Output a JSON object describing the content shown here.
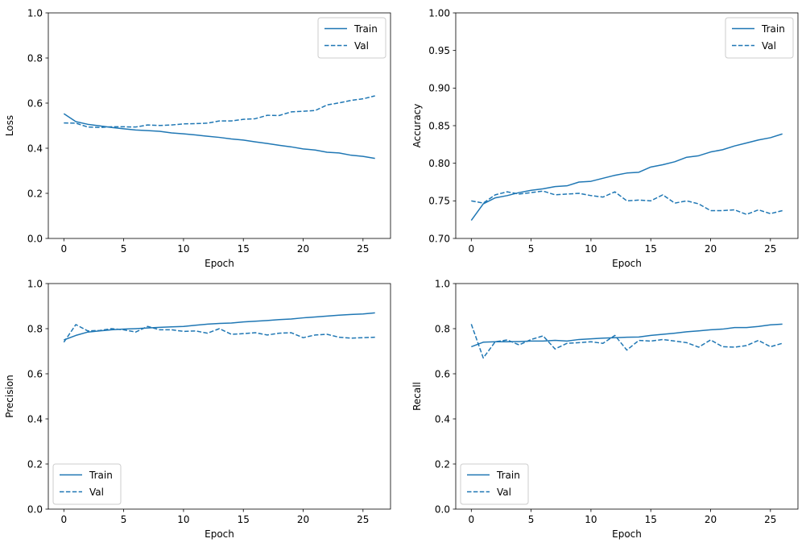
{
  "colors": {
    "series": "#1f77b4",
    "axis": "#000000",
    "legend_border": "#cccccc",
    "background": "#ffffff"
  },
  "chart_data": [
    {
      "type": "line",
      "xlabel": "Epoch",
      "ylabel": "Loss",
      "xlim": [
        -1.3,
        27.3
      ],
      "ylim": [
        0.0,
        1.0
      ],
      "xticks": [
        0,
        5,
        10,
        15,
        20,
        25
      ],
      "xtick_labels": [
        "0",
        "5",
        "10",
        "15",
        "20",
        "25"
      ],
      "yticks": [
        0.0,
        0.2,
        0.4,
        0.6,
        0.8,
        1.0
      ],
      "ytick_labels": [
        "0.0",
        "0.2",
        "0.4",
        "0.6",
        "0.8",
        "1.0"
      ],
      "legend_position": "upper right",
      "grid": false,
      "x": [
        0,
        1,
        2,
        3,
        4,
        5,
        6,
        7,
        8,
        9,
        10,
        11,
        12,
        13,
        14,
        15,
        16,
        17,
        18,
        19,
        20,
        21,
        22,
        23,
        24,
        25,
        26
      ],
      "series": [
        {
          "name": "Train",
          "style": "solid",
          "values": [
            0.553,
            0.518,
            0.506,
            0.499,
            0.492,
            0.486,
            0.481,
            0.478,
            0.475,
            0.468,
            0.464,
            0.459,
            0.453,
            0.448,
            0.441,
            0.436,
            0.428,
            0.421,
            0.413,
            0.406,
            0.397,
            0.392,
            0.382,
            0.379,
            0.369,
            0.364,
            0.355
          ]
        },
        {
          "name": "Val",
          "style": "dashed",
          "values": [
            0.512,
            0.511,
            0.494,
            0.492,
            0.495,
            0.495,
            0.494,
            0.503,
            0.501,
            0.503,
            0.508,
            0.509,
            0.511,
            0.521,
            0.521,
            0.528,
            0.531,
            0.546,
            0.545,
            0.561,
            0.564,
            0.567,
            0.592,
            0.601,
            0.612,
            0.619,
            0.632
          ]
        }
      ]
    },
    {
      "type": "line",
      "xlabel": "Epoch",
      "ylabel": "Accuracy",
      "xlim": [
        -1.3,
        27.3
      ],
      "ylim": [
        0.7,
        1.0
      ],
      "xticks": [
        0,
        5,
        10,
        15,
        20,
        25
      ],
      "xtick_labels": [
        "0",
        "5",
        "10",
        "15",
        "20",
        "25"
      ],
      "yticks": [
        0.7,
        0.75,
        0.8,
        0.85,
        0.9,
        0.95,
        1.0
      ],
      "ytick_labels": [
        "0.70",
        "0.75",
        "0.80",
        "0.85",
        "0.90",
        "0.95",
        "1.00"
      ],
      "legend_position": "upper right",
      "grid": false,
      "x": [
        0,
        1,
        2,
        3,
        4,
        5,
        6,
        7,
        8,
        9,
        10,
        11,
        12,
        13,
        14,
        15,
        16,
        17,
        18,
        19,
        20,
        21,
        22,
        23,
        24,
        25,
        26
      ],
      "series": [
        {
          "name": "Train",
          "style": "solid",
          "values": [
            0.724,
            0.746,
            0.754,
            0.757,
            0.761,
            0.764,
            0.766,
            0.769,
            0.77,
            0.775,
            0.776,
            0.78,
            0.784,
            0.787,
            0.788,
            0.795,
            0.798,
            0.802,
            0.808,
            0.81,
            0.815,
            0.818,
            0.823,
            0.827,
            0.831,
            0.834,
            0.839
          ]
        },
        {
          "name": "Val",
          "style": "dashed",
          "values": [
            0.75,
            0.747,
            0.758,
            0.762,
            0.759,
            0.761,
            0.763,
            0.758,
            0.759,
            0.76,
            0.757,
            0.755,
            0.762,
            0.75,
            0.751,
            0.75,
            0.758,
            0.747,
            0.75,
            0.746,
            0.737,
            0.737,
            0.738,
            0.732,
            0.738,
            0.733,
            0.737
          ]
        }
      ]
    },
    {
      "type": "line",
      "xlabel": "Epoch",
      "ylabel": "Precision",
      "xlim": [
        -1.3,
        27.3
      ],
      "ylim": [
        0.0,
        1.0
      ],
      "xticks": [
        0,
        5,
        10,
        15,
        20,
        25
      ],
      "xtick_labels": [
        "0",
        "5",
        "10",
        "15",
        "20",
        "25"
      ],
      "yticks": [
        0.0,
        0.2,
        0.4,
        0.6,
        0.8,
        1.0
      ],
      "ytick_labels": [
        "0.0",
        "0.2",
        "0.4",
        "0.6",
        "0.8",
        "1.0"
      ],
      "legend_position": "lower left",
      "grid": false,
      "x": [
        0,
        1,
        2,
        3,
        4,
        5,
        6,
        7,
        8,
        9,
        10,
        11,
        12,
        13,
        14,
        15,
        16,
        17,
        18,
        19,
        20,
        21,
        22,
        23,
        24,
        25,
        26
      ],
      "series": [
        {
          "name": "Train",
          "style": "solid",
          "values": [
            0.75,
            0.77,
            0.785,
            0.79,
            0.795,
            0.798,
            0.8,
            0.803,
            0.806,
            0.808,
            0.81,
            0.815,
            0.82,
            0.823,
            0.825,
            0.83,
            0.833,
            0.836,
            0.84,
            0.843,
            0.848,
            0.852,
            0.856,
            0.86,
            0.863,
            0.865,
            0.87
          ]
        },
        {
          "name": "Val",
          "style": "dashed",
          "values": [
            0.74,
            0.818,
            0.79,
            0.792,
            0.8,
            0.795,
            0.785,
            0.81,
            0.795,
            0.795,
            0.788,
            0.79,
            0.78,
            0.8,
            0.775,
            0.778,
            0.782,
            0.772,
            0.78,
            0.782,
            0.76,
            0.772,
            0.775,
            0.762,
            0.758,
            0.76,
            0.762
          ]
        }
      ]
    },
    {
      "type": "line",
      "xlabel": "Epoch",
      "ylabel": "Recall",
      "xlim": [
        -1.3,
        27.3
      ],
      "ylim": [
        0.0,
        1.0
      ],
      "xticks": [
        0,
        5,
        10,
        15,
        20,
        25
      ],
      "xtick_labels": [
        "0",
        "5",
        "10",
        "15",
        "20",
        "25"
      ],
      "yticks": [
        0.0,
        0.2,
        0.4,
        0.6,
        0.8,
        1.0
      ],
      "ytick_labels": [
        "0.0",
        "0.2",
        "0.4",
        "0.6",
        "0.8",
        "1.0"
      ],
      "legend_position": "lower left",
      "grid": false,
      "x": [
        0,
        1,
        2,
        3,
        4,
        5,
        6,
        7,
        8,
        9,
        10,
        11,
        12,
        13,
        14,
        15,
        16,
        17,
        18,
        19,
        20,
        21,
        22,
        23,
        24,
        25,
        26
      ],
      "series": [
        {
          "name": "Train",
          "style": "solid",
          "values": [
            0.72,
            0.74,
            0.742,
            0.742,
            0.743,
            0.745,
            0.745,
            0.748,
            0.745,
            0.752,
            0.755,
            0.758,
            0.76,
            0.762,
            0.763,
            0.77,
            0.775,
            0.78,
            0.786,
            0.79,
            0.795,
            0.798,
            0.805,
            0.805,
            0.81,
            0.817,
            0.82
          ]
        },
        {
          "name": "Val",
          "style": "dashed",
          "values": [
            0.82,
            0.67,
            0.742,
            0.75,
            0.728,
            0.752,
            0.768,
            0.71,
            0.735,
            0.738,
            0.742,
            0.735,
            0.77,
            0.705,
            0.748,
            0.745,
            0.752,
            0.745,
            0.738,
            0.718,
            0.75,
            0.72,
            0.718,
            0.725,
            0.748,
            0.72,
            0.735
          ]
        }
      ]
    }
  ]
}
